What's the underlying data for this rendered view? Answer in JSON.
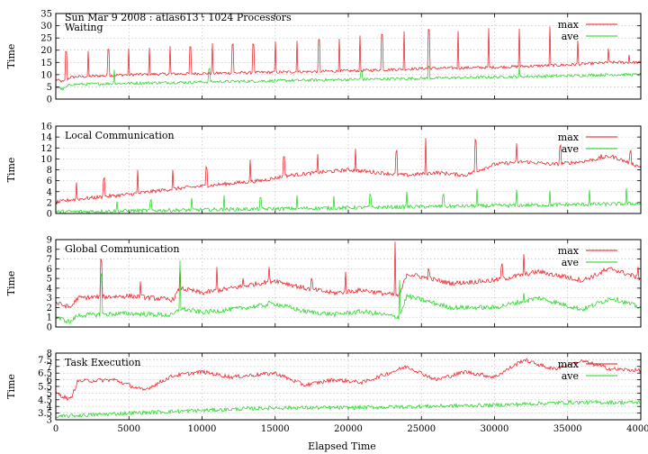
{
  "figure": {
    "supertitle": "Sun Mar 9 2008 : atlas613 : 1024 Processors",
    "xlabel": "Elapsed Time"
  },
  "colors": {
    "max": "#e8141c",
    "ave": "#17d417"
  },
  "chart_data": [
    {
      "type": "line",
      "title": "Waiting",
      "ylabel": "Time",
      "xlim": [
        0,
        40000
      ],
      "ylim": [
        0,
        35
      ],
      "yticks": [
        0,
        5,
        10,
        15,
        20,
        25,
        30,
        35
      ],
      "xticks": [
        0,
        5000,
        10000,
        15000,
        20000,
        25000,
        30000,
        35000,
        40000
      ],
      "grid": true,
      "legend": "top-right",
      "series": [
        {
          "name": "max",
          "x": [
            0,
            500,
            1000,
            5000,
            10000,
            15000,
            20000,
            25000,
            30000,
            35000,
            38000,
            40000
          ],
          "values": [
            8,
            7,
            9,
            10,
            10.5,
            11,
            11.5,
            12.5,
            13,
            14,
            15,
            15
          ],
          "spikes": [
            [
              700,
              20
            ],
            [
              2200,
              20
            ],
            [
              3600,
              21
            ],
            [
              5000,
              21
            ],
            [
              6400,
              21
            ],
            [
              7800,
              22
            ],
            [
              9200,
              22
            ],
            [
              10700,
              23
            ],
            [
              12100,
              23
            ],
            [
              13500,
              23
            ],
            [
              15000,
              24
            ],
            [
              16500,
              24
            ],
            [
              18000,
              25
            ],
            [
              19400,
              25
            ],
            [
              20800,
              26
            ],
            [
              22300,
              27
            ],
            [
              23800,
              28
            ],
            [
              25500,
              29
            ],
            [
              27500,
              28
            ],
            [
              29600,
              29
            ],
            [
              31700,
              29
            ],
            [
              33800,
              30
            ],
            [
              35700,
              24
            ],
            [
              37800,
              21
            ],
            [
              39200,
              18
            ]
          ]
        },
        {
          "name": "ave",
          "x": [
            0,
            500,
            1000,
            5000,
            10000,
            15000,
            20000,
            25000,
            30000,
            35000,
            38000,
            40000
          ],
          "values": [
            5,
            4,
            6,
            6.5,
            7,
            7.5,
            8,
            8.5,
            9,
            9.5,
            10,
            10
          ],
          "spikes": [
            [
              4000,
              12
            ],
            [
              10500,
              13
            ],
            [
              20900,
              12
            ],
            [
              25500,
              14
            ],
            [
              31700,
              13
            ]
          ]
        }
      ]
    },
    {
      "type": "line",
      "title": "Local Communication",
      "ylabel": "Time",
      "xlim": [
        0,
        40000
      ],
      "ylim": [
        0,
        16
      ],
      "yticks": [
        0,
        2,
        4,
        6,
        8,
        10,
        12,
        14,
        16
      ],
      "xticks": [
        0,
        5000,
        10000,
        15000,
        20000,
        25000,
        30000,
        35000,
        40000
      ],
      "grid": true,
      "legend": "top-right",
      "series": [
        {
          "name": "max",
          "x": [
            0,
            1000,
            3000,
            5000,
            8000,
            10000,
            12000,
            14000,
            16000,
            18000,
            20000,
            22000,
            24000,
            26000,
            28000,
            30000,
            32000,
            34000,
            36000,
            38000,
            40000
          ],
          "values": [
            2,
            2.5,
            3,
            3.5,
            4.5,
            5,
            5.5,
            6,
            7,
            7.5,
            8,
            7.5,
            7,
            7.5,
            7,
            9,
            9.5,
            9,
            9.5,
            10.5,
            8.5
          ],
          "spikes": [
            [
              1400,
              6
            ],
            [
              3300,
              7
            ],
            [
              5600,
              8
            ],
            [
              8000,
              8
            ],
            [
              10300,
              9
            ],
            [
              13300,
              10
            ],
            [
              15600,
              11
            ],
            [
              17900,
              11
            ],
            [
              20500,
              12
            ],
            [
              23300,
              12
            ],
            [
              25300,
              14
            ],
            [
              28700,
              14
            ],
            [
              31500,
              13
            ],
            [
              34500,
              13
            ],
            [
              37300,
              11
            ],
            [
              39300,
              12
            ]
          ]
        },
        {
          "name": "ave",
          "x": [
            0,
            40000
          ],
          "values": [
            0.3,
            1.8
          ],
          "spikes": [
            [
              4200,
              2.5
            ],
            [
              6500,
              3
            ],
            [
              9300,
              3
            ],
            [
              11500,
              3.5
            ],
            [
              14000,
              3.5
            ],
            [
              16500,
              3.5
            ],
            [
              19000,
              3.5
            ],
            [
              21500,
              4
            ],
            [
              24000,
              4
            ],
            [
              26500,
              4
            ],
            [
              28800,
              4.5
            ],
            [
              31500,
              4.5
            ],
            [
              33800,
              4.5
            ],
            [
              36500,
              4.5
            ],
            [
              39000,
              5
            ]
          ]
        }
      ]
    },
    {
      "type": "line",
      "title": "Global Communication",
      "ylabel": "Time",
      "xlim": [
        0,
        40000
      ],
      "ylim": [
        0,
        9
      ],
      "yticks": [
        0,
        1,
        2,
        3,
        4,
        5,
        6,
        7,
        8,
        9
      ],
      "xticks": [
        0,
        5000,
        10000,
        15000,
        20000,
        25000,
        30000,
        35000,
        40000
      ],
      "grid": true,
      "legend": "top-right",
      "series": [
        {
          "name": "max",
          "x": [
            0,
            1000,
            1500,
            5000,
            8000,
            8500,
            10000,
            12000,
            15000,
            17000,
            19000,
            21000,
            23500,
            24000,
            27000,
            30000,
            33000,
            36000,
            38000,
            40000
          ],
          "values": [
            2.5,
            2,
            3,
            3.2,
            2.8,
            4,
            3.5,
            4,
            4.8,
            4,
            3.5,
            3.8,
            3.2,
            5.5,
            4.5,
            4.8,
            5.7,
            4.8,
            6,
            5
          ],
          "spikes": [
            [
              3100,
              7.5
            ],
            [
              5800,
              5
            ],
            [
              8500,
              6.5
            ],
            [
              11000,
              6.5
            ],
            [
              12800,
              5
            ],
            [
              14600,
              6.5
            ],
            [
              17500,
              5.5
            ],
            [
              19800,
              6
            ],
            [
              23200,
              8.8
            ],
            [
              25500,
              6.5
            ],
            [
              30500,
              7
            ],
            [
              32000,
              7.5
            ],
            [
              34800,
              6
            ],
            [
              37500,
              6.5
            ],
            [
              39800,
              6.5
            ]
          ]
        },
        {
          "name": "ave",
          "x": [
            0,
            1000,
            1500,
            5000,
            8000,
            8500,
            10000,
            12000,
            15000,
            17000,
            19000,
            21000,
            23500,
            24000,
            27000,
            30000,
            33000,
            36000,
            38000,
            40000
          ],
          "values": [
            1,
            0.5,
            1.2,
            1.4,
            1.2,
            1.9,
            1.5,
            1.8,
            2.4,
            1.6,
            1.3,
            1.6,
            1,
            3.2,
            2,
            2,
            3,
            1.8,
            3,
            2
          ],
          "spikes": [
            [
              3100,
              6
            ],
            [
              8500,
              7
            ],
            [
              14600,
              3
            ],
            [
              23500,
              5
            ],
            [
              32000,
              3.5
            ]
          ]
        }
      ]
    },
    {
      "type": "line",
      "title": "Task Execution",
      "ylabel": "Time",
      "xlim": [
        0,
        40000
      ],
      "ylim": [
        3,
        8
      ],
      "yticks": [
        3,
        3.5,
        4,
        4.5,
        5,
        5.5,
        6,
        6.5,
        7,
        7.5,
        8
      ],
      "yticklabels": [
        "3",
        "3.5",
        "4",
        "4.5",
        "5",
        "5.5",
        "6",
        "6.5",
        "7",
        "7.5",
        "8"
      ],
      "xticks": [
        0,
        5000,
        10000,
        15000,
        20000,
        25000,
        30000,
        35000,
        40000
      ],
      "xticklabels": [
        "0",
        "5000",
        "10000",
        "15000",
        "20000",
        "25000",
        "30000",
        "35000",
        "40000"
      ],
      "grid": true,
      "legend": "top-right",
      "series": [
        {
          "name": "max",
          "x": [
            0,
            1000,
            1500,
            4000,
            6000,
            8000,
            10000,
            12000,
            15000,
            17000,
            19000,
            21000,
            24000,
            26000,
            28000,
            30000,
            32000,
            34000,
            36000,
            38000,
            40000
          ],
          "values": [
            5,
            4.5,
            5.9,
            6,
            5.2,
            6.3,
            6.6,
            6.2,
            6.5,
            5.6,
            6,
            5.8,
            7,
            6,
            6.6,
            6.2,
            7.5,
            6.8,
            7.4,
            6.8,
            6.7
          ]
        },
        {
          "name": "ave",
          "x": [
            0,
            1000,
            5000,
            10000,
            15000,
            20000,
            25000,
            30000,
            35000,
            40000
          ],
          "values": [
            3.2,
            3.3,
            3.5,
            3.7,
            3.9,
            3.9,
            4,
            4.1,
            4.3,
            4.3
          ]
        }
      ]
    }
  ]
}
